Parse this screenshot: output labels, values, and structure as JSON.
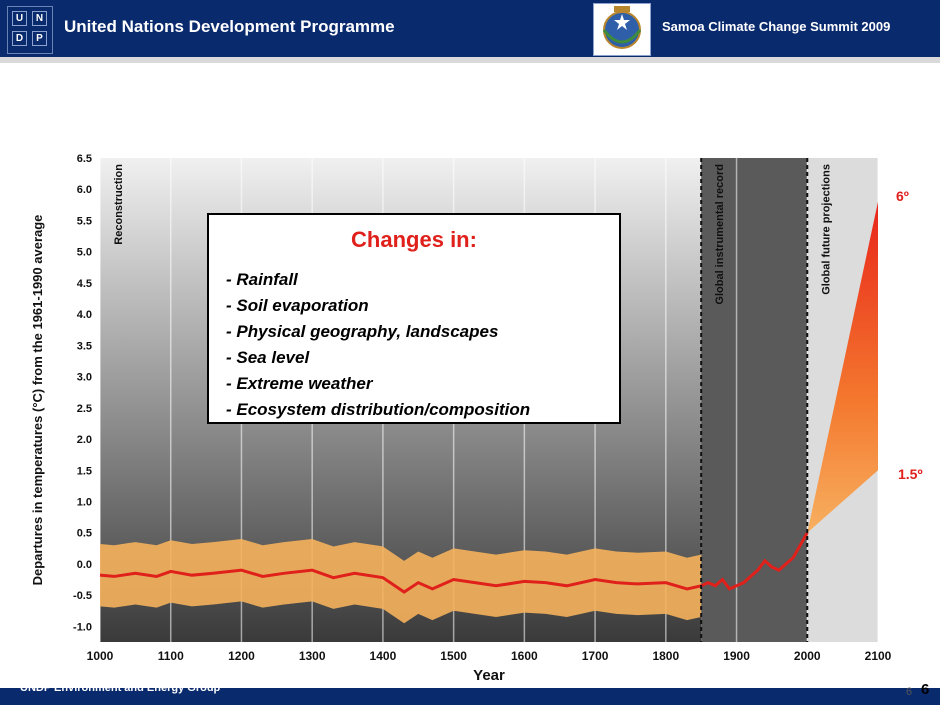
{
  "header": {
    "org_title": "United Nations Development Programme",
    "logo_letters": [
      "U",
      "N",
      "D",
      "P"
    ],
    "summit_title": "Samoa Climate Change Summit 2009"
  },
  "footer": {
    "text": "UNDP Environment and Energy Group",
    "page_small": "6",
    "page_big": "6"
  },
  "box": {
    "title": "Changes in:",
    "items": [
      "- Rainfall",
      "- Soil evaporation",
      "- Physical geography, landscapes",
      "- Sea level",
      "- Extreme weather",
      "- Ecosystem distribution/composition"
    ]
  },
  "annotations": {
    "high": "6º",
    "low": "1.5º"
  },
  "colors": {
    "header_bg": "#0a2a6e",
    "accent_red": "#e0201b",
    "band_orange": "#f6b35c",
    "line_red": "#e0201b"
  },
  "chart_data": {
    "type": "line",
    "xlabel": "Year",
    "ylabel": "Departures in temperatures (°C) from the 1961-1990 average",
    "xlim": [
      1000,
      2100
    ],
    "ylim": [
      -1.25,
      6.5
    ],
    "x_ticks": [
      1000,
      1100,
      1200,
      1300,
      1400,
      1500,
      1600,
      1700,
      1800,
      1900,
      2000,
      2100
    ],
    "y_ticks": [
      6.5,
      6.0,
      5.5,
      5.0,
      4.5,
      4.0,
      3.5,
      3.0,
      2.5,
      2.0,
      1.5,
      1.0,
      0.5,
      0.0,
      -0.5,
      -1.0
    ],
    "x_tick_labels": [
      "1000",
      "1100",
      "1200",
      "1300",
      "1400",
      "1500",
      "1600",
      "1700",
      "1800",
      "1900",
      "2000",
      "2100"
    ],
    "y_tick_labels": [
      "6.5",
      "6.0",
      "5.5",
      "5.0",
      "4.5",
      "4.0",
      "3.5",
      "3.0",
      "2.5",
      "2.0",
      "1.5",
      "1.0",
      "0.5",
      "0.0",
      "-0.5",
      "-1.0"
    ],
    "regions": [
      {
        "label": "Reconstruction",
        "x": [
          1000,
          1850
        ]
      },
      {
        "label": "Global instrumental record",
        "x": [
          1850,
          2000
        ]
      },
      {
        "label": "Global future projections",
        "x": [
          2000,
          2100
        ]
      }
    ],
    "dividers": [
      1850,
      2000
    ],
    "series": [
      {
        "x": [
          1000,
          1020,
          1050,
          1080,
          1100,
          1130,
          1160,
          1200,
          1230,
          1260,
          1300,
          1330,
          1360,
          1400,
          1430,
          1450,
          1470,
          1500,
          1530,
          1560,
          1600,
          1630,
          1660,
          1700,
          1730,
          1760,
          1800,
          1830,
          1850,
          1860,
          1870,
          1880,
          1890,
          1900,
          1910,
          1920,
          1930,
          1940,
          1950,
          1960,
          1970,
          1980,
          1990,
          2000
        ],
        "y": [
          -0.18,
          -0.2,
          -0.15,
          -0.2,
          -0.12,
          -0.18,
          -0.15,
          -0.1,
          -0.2,
          -0.15,
          -0.1,
          -0.22,
          -0.15,
          -0.22,
          -0.45,
          -0.3,
          -0.4,
          -0.25,
          -0.3,
          -0.35,
          -0.28,
          -0.3,
          -0.35,
          -0.25,
          -0.3,
          -0.32,
          -0.3,
          -0.4,
          -0.35,
          -0.3,
          -0.35,
          -0.25,
          -0.4,
          -0.35,
          -0.3,
          -0.2,
          -0.1,
          0.05,
          -0.05,
          -0.1,
          0.0,
          0.1,
          0.3,
          0.5
        ]
      }
    ],
    "uncertainty_band": {
      "x_range": [
        1000,
        1850
      ],
      "half_width": 0.5
    },
    "projection": {
      "x": [
        2000,
        2100
      ],
      "lower": [
        0.5,
        1.5
      ],
      "upper": [
        0.5,
        5.8
      ]
    }
  }
}
